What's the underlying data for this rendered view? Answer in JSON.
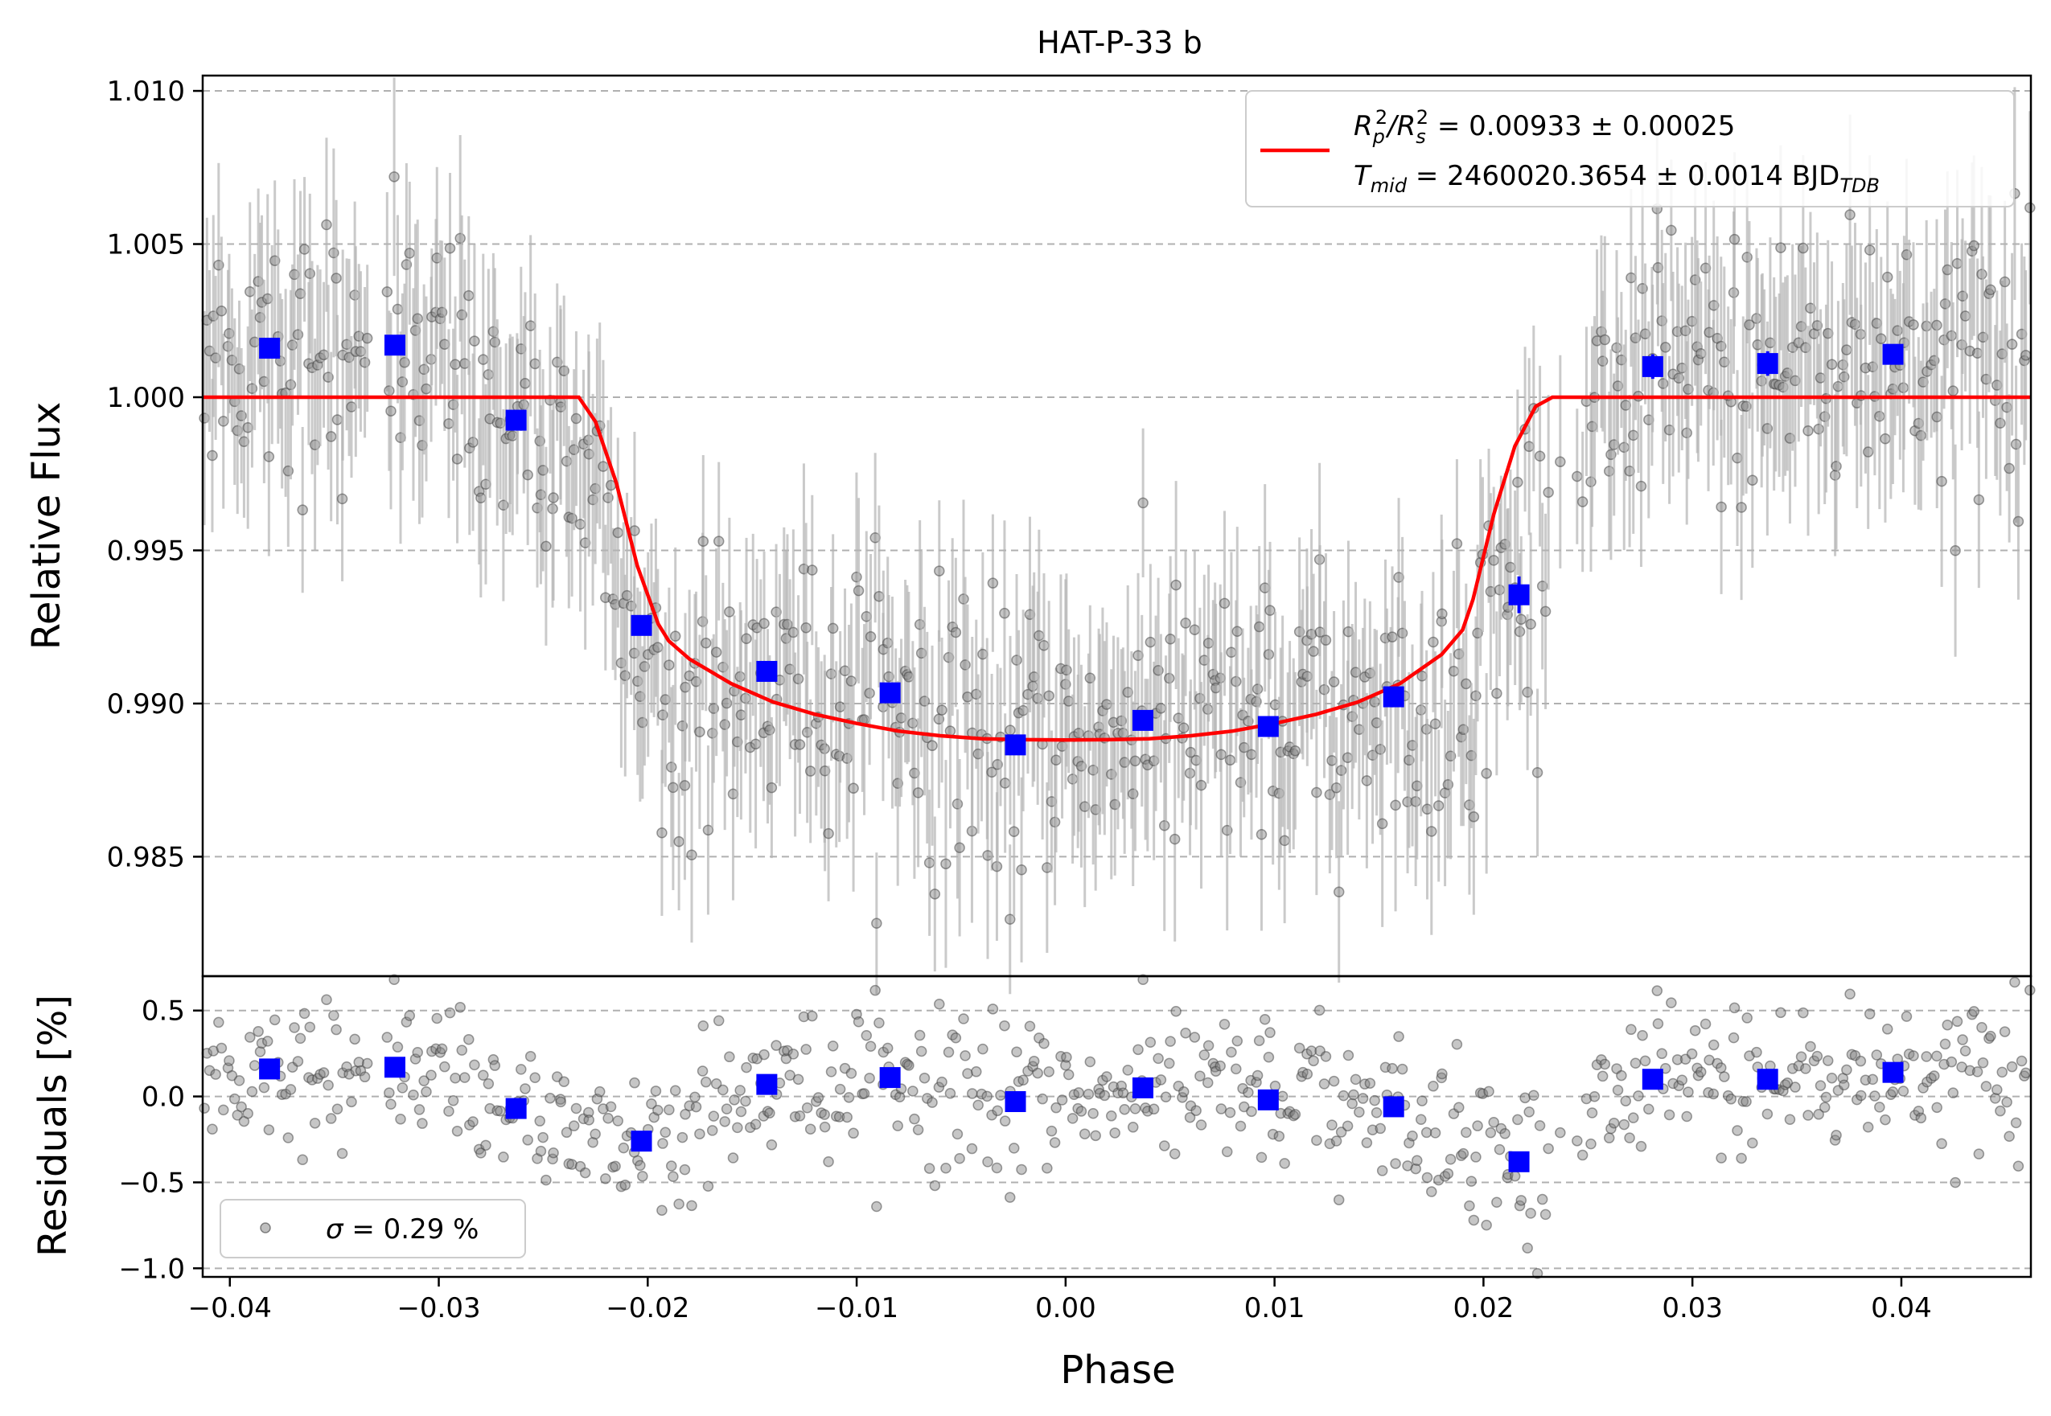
{
  "chart_data": [
    {
      "panel": "main",
      "type": "scatter",
      "title": "HAT-P-33 b",
      "xlabel": "",
      "ylabel": "Relative Flux",
      "xlim": [
        -0.0413,
        0.0462
      ],
      "ylim": [
        0.9811,
        1.0105
      ],
      "grid": "horizontal dashed",
      "yticks": [
        "1.010",
        "1.005",
        "1.000",
        "0.995",
        "0.990",
        "0.985"
      ],
      "ytick_values": [
        1.01,
        1.005,
        1.0,
        0.995,
        0.99,
        0.985
      ],
      "legend": {
        "placement": "top-right",
        "entries": [
          {
            "prefix": "R",
            "sub1": "p",
            "sup1": "2",
            "slash": "/R",
            "sub2": "s",
            "sup2": "2",
            "rest": " = 0.00933 ± 0.00025"
          },
          {
            "prefix": "T",
            "sub1": "mid",
            "rest": " = 2460020.3654 ± 0.0014 BJD",
            "sub2": "TDB"
          }
        ]
      },
      "model": {
        "name": "transit model",
        "color": "#ff0000",
        "x": [
          -0.0413,
          -0.0233,
          -0.0225,
          -0.0215,
          -0.0205,
          -0.0195,
          -0.019,
          -0.018,
          -0.016,
          -0.014,
          -0.012,
          -0.01,
          -0.008,
          -0.006,
          -0.004,
          -0.002,
          0.0,
          0.002,
          0.004,
          0.006,
          0.008,
          0.01,
          0.012,
          0.014,
          0.016,
          0.018,
          0.019,
          0.0195,
          0.0205,
          0.0215,
          0.0225,
          0.0233,
          0.0462
        ],
        "y": [
          1.0,
          1.0,
          0.9992,
          0.9972,
          0.9945,
          0.9926,
          0.99205,
          0.99145,
          0.99065,
          0.99005,
          0.98965,
          0.98935,
          0.9891,
          0.98895,
          0.98885,
          0.98882,
          0.98881,
          0.98882,
          0.98885,
          0.98895,
          0.9891,
          0.98935,
          0.98965,
          0.99005,
          0.99065,
          0.9916,
          0.9924,
          0.9934,
          0.9962,
          0.9984,
          0.9997,
          1.0,
          1.0
        ]
      },
      "binned": {
        "name": "binned",
        "color": "#0000ff",
        "x": [
          -0.0381,
          -0.0321,
          -0.0263,
          -0.0203,
          -0.0143,
          -0.0084,
          -0.0024,
          0.0037,
          0.0097,
          0.0157,
          0.0217,
          0.0281,
          0.0336,
          0.0396
        ],
        "y": [
          1.0016,
          1.0017,
          0.99925,
          0.99255,
          0.99105,
          0.99035,
          0.98865,
          0.98945,
          0.98925,
          0.99022,
          0.99355,
          1.001,
          1.0011,
          1.0014
        ],
        "err": [
          0.0003,
          0.0003,
          0.0003,
          0.0003,
          0.0003,
          0.0003,
          0.0003,
          0.0003,
          0.0003,
          0.0003,
          0.0006,
          0.0004,
          0.0004,
          0.0003
        ]
      }
    },
    {
      "panel": "residuals",
      "type": "scatter",
      "xlabel": "Phase",
      "ylabel": "Residuals [%]",
      "xlim": [
        -0.0413,
        0.0462
      ],
      "ylim": [
        -1.05,
        0.7
      ],
      "grid": "horizontal dashed",
      "yticks": [
        "0.5",
        "0.0",
        "−0.5",
        "−1.0"
      ],
      "ytick_values": [
        0.5,
        0.0,
        -0.5,
        -1.0
      ],
      "xticks": [
        "−0.04",
        "−0.03",
        "−0.02",
        "−0.01",
        "0.00",
        "0.01",
        "0.02",
        "0.03",
        "0.04"
      ],
      "xtick_values": [
        -0.04,
        -0.03,
        -0.02,
        -0.01,
        0.0,
        0.01,
        0.02,
        0.03,
        0.04
      ],
      "legend": {
        "placement": "bottom-left",
        "label_symbol": "σ",
        "label_rest": " = 0.29 %"
      },
      "binned": {
        "x": [
          -0.0381,
          -0.0321,
          -0.0263,
          -0.0203,
          -0.0143,
          -0.0084,
          -0.0024,
          0.0037,
          0.0097,
          0.0157,
          0.0217,
          0.0281,
          0.0336,
          0.0396
        ],
        "y": [
          0.16,
          0.17,
          -0.07,
          -0.26,
          0.07,
          0.11,
          -0.03,
          0.05,
          -0.02,
          -0.06,
          -0.38,
          0.1,
          0.1,
          0.14
        ]
      }
    }
  ],
  "colors": {
    "raw_points": "#808080",
    "error_bars": "#b3b3b3",
    "model": "#ff0000",
    "binned": "#0000ff",
    "grid": "#b0b0b0"
  }
}
